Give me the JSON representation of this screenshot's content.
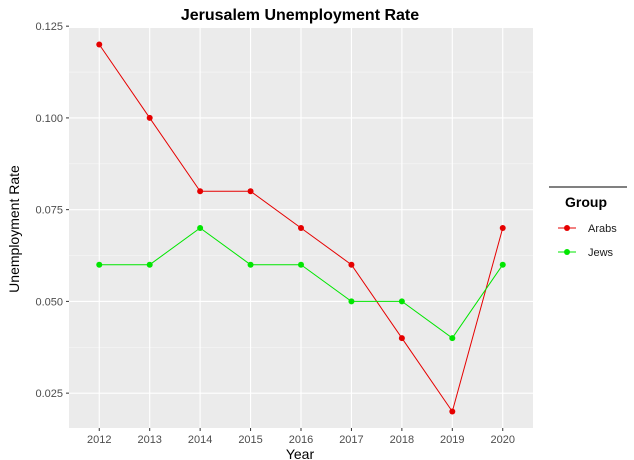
{
  "chart_data": {
    "type": "line",
    "title": "Jerusalem Unemployment Rate",
    "xlabel": "Year",
    "ylabel": "Unemployment Rate",
    "x": [
      2012,
      2013,
      2014,
      2015,
      2016,
      2017,
      2018,
      2019,
      2020
    ],
    "x_ticks": [
      "2012",
      "2013",
      "2014",
      "2015",
      "2016",
      "2017",
      "2018",
      "2019",
      "2020"
    ],
    "y_ticks": [
      "0.025",
      "0.050",
      "0.075",
      "0.100",
      "0.125"
    ],
    "xlim": [
      2011.4,
      2020.6
    ],
    "ylim": [
      0.0155,
      0.1245
    ],
    "grid": true,
    "legend": {
      "title": "Group",
      "position": "right"
    },
    "series": [
      {
        "name": "Arabs",
        "color": "#e60000",
        "values": [
          0.12,
          0.1,
          0.08,
          0.08,
          0.07,
          0.06,
          0.04,
          0.02,
          0.07
        ]
      },
      {
        "name": "Jews",
        "color": "#00e600",
        "values": [
          0.06,
          0.06,
          0.07,
          0.06,
          0.06,
          0.05,
          0.05,
          0.04,
          0.06
        ]
      }
    ]
  }
}
